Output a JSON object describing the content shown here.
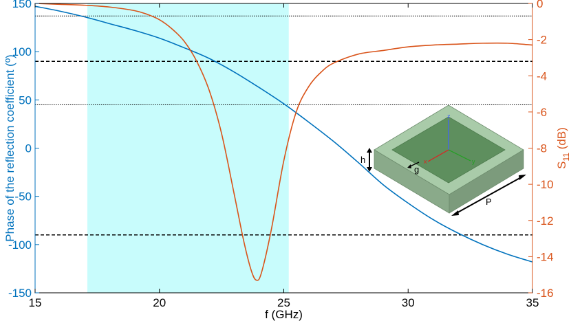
{
  "chart_data": {
    "type": "line",
    "xlabel": "f (GHz)",
    "ylabel_left": "Phase of the reflection coefficient (º)",
    "ylabel_right_main": "S",
    "ylabel_right_sub": "11",
    "ylabel_right_unit": " (dB)",
    "xlim": [
      15,
      35
    ],
    "ylim_left": [
      -150,
      150
    ],
    "ylim_right": [
      -16,
      0
    ],
    "x_ticks": [
      15,
      20,
      25,
      30,
      35
    ],
    "y_left_ticks": [
      150,
      100,
      50,
      0,
      -50,
      -100,
      -150
    ],
    "y_right_ticks": [
      0,
      -2,
      -4,
      -6,
      -8,
      -10,
      -12,
      -14,
      -16
    ],
    "shaded_band": [
      17.1,
      25.2
    ],
    "reference_lines": [
      {
        "axis": "left",
        "value": 137,
        "style": "dotted"
      },
      {
        "axis": "left",
        "value": 90,
        "style": "dashed"
      },
      {
        "axis": "left",
        "value": 45,
        "style": "dotted"
      },
      {
        "axis": "left",
        "value": -90,
        "style": "dashed"
      }
    ],
    "series": [
      {
        "axis": "left",
        "color": "#0072bd",
        "x": [
          15,
          16,
          17,
          18,
          19,
          20,
          21,
          22,
          23,
          24,
          25,
          26,
          27,
          28,
          29,
          30,
          31,
          32,
          33,
          34,
          35
        ],
        "values": [
          147,
          142,
          136,
          129,
          122,
          114,
          104,
          93,
          79,
          63,
          46,
          27,
          7,
          -15,
          -38,
          -57,
          -74,
          -88,
          -100,
          -110,
          -118
        ]
      },
      {
        "axis": "right",
        "color": "#d95319",
        "x": [
          15,
          16,
          17,
          18,
          19,
          19.5,
          20,
          20.5,
          21,
          21.5,
          22,
          22.5,
          23,
          23.4,
          23.7,
          23.9,
          24.1,
          24.5,
          25,
          25.5,
          26,
          26.5,
          27,
          28,
          29,
          30,
          31,
          32,
          33,
          34,
          35
        ],
        "values": [
          0,
          -0.05,
          -0.1,
          -0.2,
          -0.4,
          -0.6,
          -0.9,
          -1.4,
          -2.1,
          -3.2,
          -4.8,
          -7.2,
          -10.5,
          -13.2,
          -14.8,
          -15.3,
          -14.9,
          -12.5,
          -8.7,
          -6.0,
          -4.6,
          -3.8,
          -3.3,
          -2.8,
          -2.6,
          -2.4,
          -2.3,
          -2.25,
          -2.2,
          -2.2,
          -2.3
        ]
      }
    ]
  },
  "inset": {
    "label_h": "h",
    "label_g": "g",
    "label_p": "P",
    "axis_z": "z",
    "axis_x": "x",
    "axis_y": "y"
  }
}
